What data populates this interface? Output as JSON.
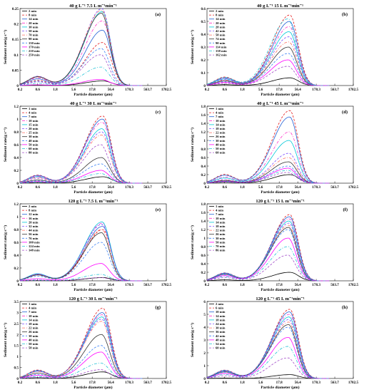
{
  "figure": {
    "panel_count": 8
  },
  "chart_data": [
    {
      "panel": "(a)",
      "type": "line",
      "title": "40 g L⁻¹ 7.5 L m⁻¹min⁻¹",
      "xlabel": "Particle diameter (μm)",
      "ylabel": "Sediment rate(g s⁻¹)",
      "x_scale": "log",
      "x_ticks": [
        0.2,
        0.6,
        1.8,
        5.6,
        17.8,
        56.4,
        178.3,
        563.7,
        1782.5
      ],
      "x_tick_labels": [
        "0.2",
        "0.6",
        "1.8",
        "5.6",
        "17.8",
        "56.4",
        "178.3",
        "563.7",
        "1782.5"
      ],
      "ylim": [
        0,
        0.25
      ],
      "y_ticks": [
        0,
        0.05,
        0.1,
        0.15,
        0.2,
        0.25
      ],
      "legend": [
        "2 min",
        "8 min",
        "14 min",
        "20 min",
        "30 min",
        "50 min",
        "70 min",
        "90 min",
        "130 min",
        "170 min",
        "210 min",
        "250 min"
      ],
      "legend_position": "top-left",
      "peaks": [
        0.015,
        0.14,
        0.18,
        0.21,
        0.24,
        0.25,
        0.245,
        0.235,
        0.12,
        0.02,
        0.06,
        0.1
      ]
    },
    {
      "panel": "(b)",
      "type": "line",
      "title": "40 g L⁻¹ 15 L m⁻¹min⁻¹",
      "xlabel": "Particle diameter (μm)",
      "ylabel": "Sediment rate(g s⁻¹)",
      "x_scale": "log",
      "x_ticks": [
        0.2,
        0.6,
        1.8,
        5.6,
        17.8,
        56.4,
        178.3,
        563.7,
        1782.5
      ],
      "x_tick_labels": [
        "0.2",
        "0.6",
        "1.8",
        "5.6",
        "17.8",
        "56.4",
        "178.3",
        "563.7",
        "1782.5"
      ],
      "ylim": [
        0,
        0.6
      ],
      "y_ticks": [
        0,
        0.1,
        0.2,
        0.3,
        0.4,
        0.5,
        0.6
      ],
      "legend": [
        "2 min",
        "8 min",
        "14 min",
        "20 min",
        "28 min",
        "42 min",
        "58 min",
        "74 min",
        "90 min",
        "114 min",
        "138 min",
        "162 min"
      ],
      "legend_position": "top-left",
      "peaks": [
        0.06,
        0.55,
        0.5,
        0.46,
        0.42,
        0.38,
        0.34,
        0.3,
        0.25,
        0.2,
        0.52,
        0.15
      ]
    },
    {
      "panel": "(c)",
      "type": "line",
      "title": "40 g L⁻¹ 30 L m⁻¹min⁻¹",
      "xlabel": "Particle diameter (μm)",
      "ylabel": "Sediment rate(g s⁻¹)",
      "x_scale": "log",
      "x_ticks": [
        0.2,
        0.6,
        1.8,
        5.6,
        17.8,
        56.4,
        178.3,
        563.7,
        1782.5
      ],
      "x_tick_labels": [
        "0.2",
        "0.6",
        "1.8",
        "5.6",
        "17.8",
        "56.4",
        "178.3",
        "563.7",
        "1782.5"
      ],
      "ylim": [
        0,
        1.2
      ],
      "y_ticks": [
        0,
        0.2,
        0.4,
        0.6,
        0.8,
        1,
        1.2
      ],
      "legend": [
        "1 min",
        "4 min",
        "7 min",
        "10 min",
        "15 min",
        "20 min",
        "25 min",
        "30 min",
        "40 min",
        "50 min",
        "60 min",
        "80 min"
      ],
      "legend_position": "top-left",
      "peaks": [
        0.1,
        1.05,
        1.0,
        0.95,
        0.85,
        0.8,
        0.75,
        0.4,
        0.3,
        0.2,
        0.15,
        0.6
      ]
    },
    {
      "panel": "(d)",
      "type": "line",
      "title": "40 g L⁻¹ 45 L m⁻¹min⁻¹",
      "xlabel": "Particle diameter (μm)",
      "ylabel": "Sediment rate(g s⁻¹)",
      "x_scale": "log",
      "x_ticks": [
        0.2,
        0.6,
        1.8,
        5.6,
        17.8,
        56.4,
        178.3,
        563.7,
        1782.5
      ],
      "x_tick_labels": [
        "0.2",
        "0.6",
        "1.8",
        "5.6",
        "17.8",
        "56.4",
        "178.3",
        "563.7",
        "1782.5"
      ],
      "ylim": [
        0,
        1.8
      ],
      "y_ticks": [
        0,
        0.2,
        0.4,
        0.6,
        0.8,
        1,
        1.2,
        1.4,
        1.6,
        1.8
      ],
      "legend": [
        "1 min",
        "4 min",
        "7 min",
        "10 min",
        "14 min",
        "18 min",
        "22 min",
        "26 min",
        "30 min",
        "40 min",
        "50 min",
        "60 min"
      ],
      "legend_position": "top-left",
      "peaks": [
        0.2,
        1.7,
        1.55,
        1.2,
        1.0,
        0.7,
        0.6,
        0.5,
        0.4,
        0.35,
        0.3,
        0.25
      ]
    },
    {
      "panel": "(e)",
      "type": "line",
      "title": "120 g L⁻¹ 7.5 L m⁻¹min⁻¹",
      "xlabel": "Particle diameter (μm)",
      "ylabel": "Sediment rate(g s⁻¹)",
      "x_scale": "log",
      "x_ticks": [
        0.2,
        0.6,
        1.8,
        5.6,
        17.8,
        56.4,
        178.3,
        563.7,
        1782.5
      ],
      "x_tick_labels": [
        "0.2",
        "0.6",
        "1.8",
        "5.6",
        "17.8",
        "56.4",
        "178.3",
        "563.7",
        "1782.5"
      ],
      "ylim": [
        0,
        1.2
      ],
      "y_ticks": [
        0,
        0.2,
        0.4,
        0.6,
        0.8,
        1,
        1.2
      ],
      "legend": [
        "2 min",
        "8 min",
        "12 min",
        "16 min",
        "20 min",
        "32 min",
        "44 min",
        "56 min",
        "76 min",
        "100 min",
        "124 min",
        "148 min"
      ],
      "legend_position": "top-left",
      "peaks": [
        0.05,
        0.8,
        0.85,
        0.9,
        0.92,
        0.88,
        0.8,
        0.75,
        0.6,
        0.27,
        0.1,
        0.05
      ]
    },
    {
      "panel": "(f)",
      "type": "line",
      "title": "120 g L⁻¹ 15 L m⁻¹min⁻¹",
      "xlabel": "Particle diameter (μm)",
      "ylabel": "Sediment rate(g s⁻¹)",
      "x_scale": "log",
      "x_ticks": [
        0.2,
        0.6,
        1.8,
        5.6,
        17.8,
        56.4,
        178.3,
        563.7,
        1782.5
      ],
      "x_tick_labels": [
        "0.2",
        "0.6",
        "1.8",
        "5.6",
        "17.8",
        "56.4",
        "178.3",
        "563.7",
        "1782.5"
      ],
      "ylim": [
        0,
        1.8
      ],
      "y_ticks": [
        0,
        0.2,
        0.4,
        0.6,
        0.8,
        1,
        1.2,
        1.4,
        1.6,
        1.8
      ],
      "legend": [
        "1 min",
        "4 min",
        "7 min",
        "10 min",
        "14 min",
        "18 min",
        "22 min",
        "26 min",
        "30 min",
        "50 min",
        "70 min",
        "86 min"
      ],
      "legend_position": "top-left",
      "peaks": [
        0.2,
        1.55,
        1.5,
        1.45,
        1.4,
        1.35,
        1.3,
        1.25,
        1.2,
        1.0,
        0.8,
        0.6
      ]
    },
    {
      "panel": "(g)",
      "type": "line",
      "title": "120 g L⁻¹ 30 L m⁻¹min⁻¹",
      "xlabel": "Particle diameter (μm)",
      "ylabel": "Sediment rate(g s⁻¹)",
      "x_scale": "log",
      "x_ticks": [
        0.2,
        0.6,
        1.8,
        5.6,
        17.8,
        56.4,
        178.3,
        563.7,
        1782.5
      ],
      "x_tick_labels": [
        "0.2",
        "0.6",
        "1.8",
        "5.6",
        "17.8",
        "56.4",
        "178.3",
        "563.7",
        "1782.5"
      ],
      "ylim": [
        0,
        3.5
      ],
      "y_ticks": [
        0,
        0.5,
        1,
        1.5,
        2,
        2.5,
        3,
        3.5
      ],
      "legend": [
        "1 min",
        "4 min",
        "7 min",
        "10 min",
        "14 min",
        "18 min",
        "22 min",
        "26 min",
        "30 min",
        "40 min",
        "50 min",
        "58 min"
      ],
      "legend_position": "top-left",
      "peaks": [
        0.3,
        3.2,
        3.0,
        2.9,
        2.8,
        2.7,
        2.6,
        2.0,
        1.5,
        1.2,
        0.7,
        0.4
      ]
    },
    {
      "panel": "(h)",
      "type": "line",
      "title": "120 g L⁻¹ 45 L m⁻¹min⁻¹",
      "xlabel": "Particle diameter (μm)",
      "ylabel": "Sediment rate(g s⁻¹)",
      "x_scale": "log",
      "x_ticks": [
        0.2,
        0.6,
        1.8,
        5.6,
        17.8,
        56.4,
        178.3,
        563.7,
        1782.5
      ],
      "x_tick_labels": [
        "0.2",
        "0.6",
        "1.8",
        "5.6",
        "17.8",
        "56.4",
        "178.3",
        "563.7",
        "1782.5"
      ],
      "ylim": [
        0,
        6
      ],
      "y_ticks": [
        0,
        1,
        2,
        3,
        4,
        5,
        6
      ],
      "legend": [
        "2 min",
        "6 min",
        "10 min",
        "14 min",
        "18 min",
        "24 min",
        "30 min",
        "36 min",
        "42 min",
        "48 min",
        "54 min",
        "60 min"
      ],
      "legend_position": "top-left",
      "peaks": [
        0.3,
        5.4,
        5.2,
        5.0,
        4.8,
        4.6,
        4.4,
        4.2,
        4.0,
        3.2,
        2.5,
        1.6
      ]
    }
  ],
  "series_colors": [
    "#000000",
    "#e41a1c",
    "#1f5fd6",
    "#ff33cc",
    "#00c8d8",
    "#7c4dff",
    "#ff6f61",
    "#333333",
    "#3b82f6",
    "#ff00ff",
    "#22c3d6",
    "#a24cc9"
  ],
  "series_styles": [
    "solid",
    "dashed",
    "solid",
    "dashdot",
    "solid",
    "dashed",
    "dashdot",
    "solid",
    "dashed",
    "solid",
    "dashdot",
    "dashed"
  ]
}
